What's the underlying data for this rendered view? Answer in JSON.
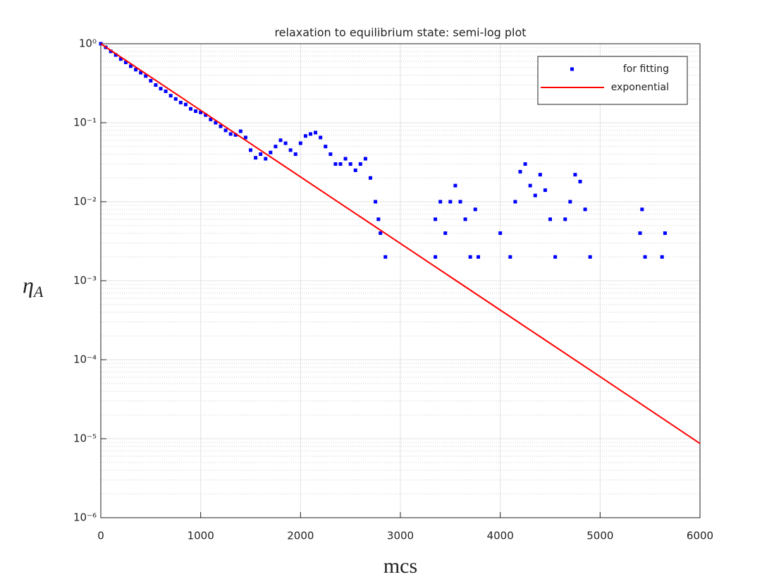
{
  "chart_data": {
    "type": "scatter",
    "title": "relaxation to equilibrium state: semi-log plot",
    "xlabel": "mcs",
    "ylabel": {
      "symbol": "η",
      "subscript": "A"
    },
    "xlim": [
      0,
      6000
    ],
    "xticks": [
      0,
      1000,
      2000,
      3000,
      4000,
      5000,
      6000
    ],
    "ylim": [
      1e-06,
      1
    ],
    "yticks": [
      {
        "value": 1e-06,
        "label": "10⁻⁶"
      },
      {
        "value": 1e-05,
        "label": "10⁻⁵"
      },
      {
        "value": 0.0001,
        "label": "10⁻⁴"
      },
      {
        "value": 0.001,
        "label": "10⁻³"
      },
      {
        "value": 0.01,
        "label": "10⁻²"
      },
      {
        "value": 0.1,
        "label": "10⁻¹"
      },
      {
        "value": 1,
        "label": "10⁰"
      }
    ],
    "ylog": true,
    "grid": true,
    "minor_grid": true,
    "legend": "northeast",
    "series": [
      {
        "name": "for fitting",
        "type": "scatter",
        "color": "#0000ff",
        "x": [
          0,
          50,
          100,
          150,
          200,
          250,
          300,
          350,
          400,
          450,
          500,
          550,
          600,
          650,
          700,
          750,
          800,
          850,
          900,
          950,
          1000,
          1050,
          1100,
          1150,
          1200,
          1250,
          1300,
          1350,
          1400,
          1450,
          1500,
          1550,
          1600,
          1650,
          1700,
          1750,
          1800,
          1850,
          1900,
          1950,
          2000,
          2050,
          2100,
          2150,
          2200,
          2250,
          2300,
          2350,
          2400,
          2450,
          2500,
          2550,
          2600,
          2650,
          2700,
          2750,
          2780,
          2800,
          2850,
          3350,
          3350,
          3400,
          3450,
          3500,
          3550,
          3600,
          3650,
          3700,
          3750,
          3780,
          4000,
          4100,
          4150,
          4200,
          4250,
          4300,
          4350,
          4400,
          4450,
          4500,
          4550,
          4650,
          4700,
          4750,
          4800,
          4850,
          4900,
          5400,
          5420,
          5450,
          5620,
          5650
        ],
        "values": [
          1,
          0.9,
          0.8,
          0.72,
          0.64,
          0.58,
          0.52,
          0.47,
          0.43,
          0.39,
          0.34,
          0.3,
          0.27,
          0.25,
          0.22,
          0.2,
          0.18,
          0.17,
          0.15,
          0.14,
          0.135,
          0.125,
          0.11,
          0.1,
          0.09,
          0.08,
          0.072,
          0.07,
          0.078,
          0.065,
          0.045,
          0.036,
          0.04,
          0.035,
          0.042,
          0.05,
          0.06,
          0.055,
          0.045,
          0.04,
          0.055,
          0.068,
          0.072,
          0.075,
          0.065,
          0.05,
          0.04,
          0.03,
          0.03,
          0.035,
          0.03,
          0.025,
          0.03,
          0.035,
          0.02,
          0.01,
          0.006,
          0.004,
          0.002,
          0.002,
          0.006,
          0.01,
          0.004,
          0.01,
          0.016,
          0.01,
          0.006,
          0.002,
          0.008,
          0.002,
          0.004,
          0.002,
          0.01,
          0.024,
          0.03,
          0.016,
          0.012,
          0.022,
          0.014,
          0.006,
          0.002,
          0.006,
          0.01,
          0.022,
          0.018,
          0.008,
          0.002,
          0.004,
          0.008,
          0.002,
          0.002,
          0.004
        ]
      },
      {
        "name": "exponential",
        "type": "line",
        "color": "#ff0000",
        "x": [
          0,
          1000,
          2000,
          3000,
          4000,
          5000,
          6000
        ],
        "values": [
          1,
          0.1436,
          0.0206,
          0.00296,
          0.000425,
          6.1e-05,
          8.7e-06
        ]
      }
    ]
  }
}
